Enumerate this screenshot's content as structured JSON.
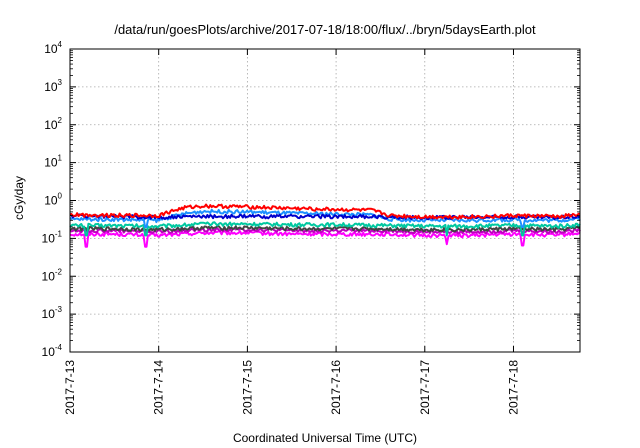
{
  "chart_data": {
    "type": "line",
    "title": "/data/run/goesPlots/archive/2017-07-18/18:00/flux/../bryn/5daysEarth.plot",
    "xlabel": "Coordinated Universal Time (UTC)",
    "ylabel": "cGy/day",
    "y_scale": "log",
    "ylim": [
      0.0001,
      10000
    ],
    "xlim": [
      "2017-07-13 00:00",
      "2017-07-18 18:00"
    ],
    "grid": true,
    "legend": "none",
    "y_ticks": [
      {
        "base": "10",
        "exp": "-4",
        "value": 0.0001
      },
      {
        "base": "10",
        "exp": "-3",
        "value": 0.001
      },
      {
        "base": "10",
        "exp": "-2",
        "value": 0.01
      },
      {
        "base": "10",
        "exp": "-1",
        "value": 0.1
      },
      {
        "base": "10",
        "exp": "0",
        "value": 1
      },
      {
        "base": "10",
        "exp": "1",
        "value": 10
      },
      {
        "base": "10",
        "exp": "2",
        "value": 100
      },
      {
        "base": "10",
        "exp": "3",
        "value": 1000
      },
      {
        "base": "10",
        "exp": "4",
        "value": 10000
      }
    ],
    "x_ticks": [
      "2017-7-13",
      "2017-7-14",
      "2017-7-15",
      "2017-7-16",
      "2017-7-17",
      "2017-7-18"
    ],
    "x_tick_days": [
      0,
      1,
      2,
      3,
      4,
      5
    ],
    "series": [
      {
        "color": "#ff0000",
        "x_days": [
          0,
          0.5,
          1.0,
          1.3,
          1.5,
          2.0,
          2.5,
          3.0,
          3.4,
          3.6,
          4.0,
          4.5,
          5.0,
          5.5,
          5.75
        ],
        "values": [
          0.42,
          0.41,
          0.4,
          0.65,
          0.72,
          0.68,
          0.62,
          0.58,
          0.55,
          0.4,
          0.37,
          0.37,
          0.4,
          0.38,
          0.42
        ]
      },
      {
        "color": "#0000cc",
        "x_days": [
          0,
          0.5,
          1.0,
          1.5,
          2.0,
          2.5,
          3.0,
          3.5,
          4.0,
          4.5,
          5.0,
          5.5,
          5.75
        ],
        "values": [
          0.4,
          0.38,
          0.36,
          0.38,
          0.38,
          0.38,
          0.38,
          0.37,
          0.36,
          0.36,
          0.37,
          0.36,
          0.39
        ]
      },
      {
        "color": "#1e90ff",
        "x_days": [
          0,
          0.5,
          1.0,
          1.3,
          1.5,
          2.0,
          2.5,
          3.0,
          3.4,
          3.6,
          4.0,
          4.5,
          5.0,
          5.5,
          5.75
        ],
        "values": [
          0.32,
          0.32,
          0.3,
          0.45,
          0.52,
          0.5,
          0.46,
          0.44,
          0.42,
          0.32,
          0.3,
          0.3,
          0.31,
          0.3,
          0.33
        ]
      },
      {
        "color": "#00c8a0",
        "x_days": [
          0,
          0.5,
          1.0,
          1.5,
          2.0,
          2.5,
          3.0,
          3.5,
          4.0,
          4.5,
          5.0,
          5.5,
          5.75
        ],
        "values": [
          0.22,
          0.22,
          0.21,
          0.24,
          0.24,
          0.23,
          0.23,
          0.22,
          0.21,
          0.21,
          0.22,
          0.21,
          0.23
        ]
      },
      {
        "color": "#444444",
        "x_days": [
          0,
          0.5,
          1.0,
          1.5,
          2.0,
          2.5,
          3.0,
          3.5,
          4.0,
          4.5,
          5.0,
          5.5,
          5.75
        ],
        "values": [
          0.18,
          0.18,
          0.17,
          0.19,
          0.19,
          0.18,
          0.18,
          0.18,
          0.17,
          0.17,
          0.18,
          0.17,
          0.19
        ]
      },
      {
        "color": "#c000c0",
        "x_days": [
          0,
          0.5,
          1.0,
          1.5,
          2.0,
          2.5,
          3.0,
          3.5,
          4.0,
          4.5,
          5.0,
          5.5,
          5.75
        ],
        "values": [
          0.16,
          0.16,
          0.15,
          0.17,
          0.17,
          0.16,
          0.16,
          0.16,
          0.15,
          0.15,
          0.16,
          0.15,
          0.17
        ]
      },
      {
        "color": "#ff00ff",
        "x_days": [
          0,
          0.5,
          1.0,
          1.5,
          2.0,
          2.5,
          3.0,
          3.5,
          4.0,
          4.5,
          5.0,
          5.5,
          5.75
        ],
        "values": [
          0.13,
          0.13,
          0.12,
          0.14,
          0.14,
          0.13,
          0.13,
          0.13,
          0.12,
          0.12,
          0.13,
          0.12,
          0.14
        ]
      }
    ],
    "spikes": [
      {
        "color": "#ff00ff",
        "x_day": 0.18,
        "value": 0.06
      },
      {
        "color": "#ff00ff",
        "x_day": 0.85,
        "value": 0.06
      },
      {
        "color": "#ff00ff",
        "x_day": 4.25,
        "value": 0.07
      },
      {
        "color": "#ff00ff",
        "x_day": 5.1,
        "value": 0.065
      },
      {
        "color": "#00c8a0",
        "x_day": 0.18,
        "value": 0.12
      },
      {
        "color": "#00c8a0",
        "x_day": 0.85,
        "value": 0.12
      },
      {
        "color": "#1e90ff",
        "x_day": 0.85,
        "value": 0.2
      },
      {
        "color": "#1e90ff",
        "x_day": 5.1,
        "value": 0.2
      },
      {
        "color": "#00c8a0",
        "x_day": 4.25,
        "value": 0.12
      },
      {
        "color": "#00c8a0",
        "x_day": 5.1,
        "value": 0.12
      }
    ]
  }
}
